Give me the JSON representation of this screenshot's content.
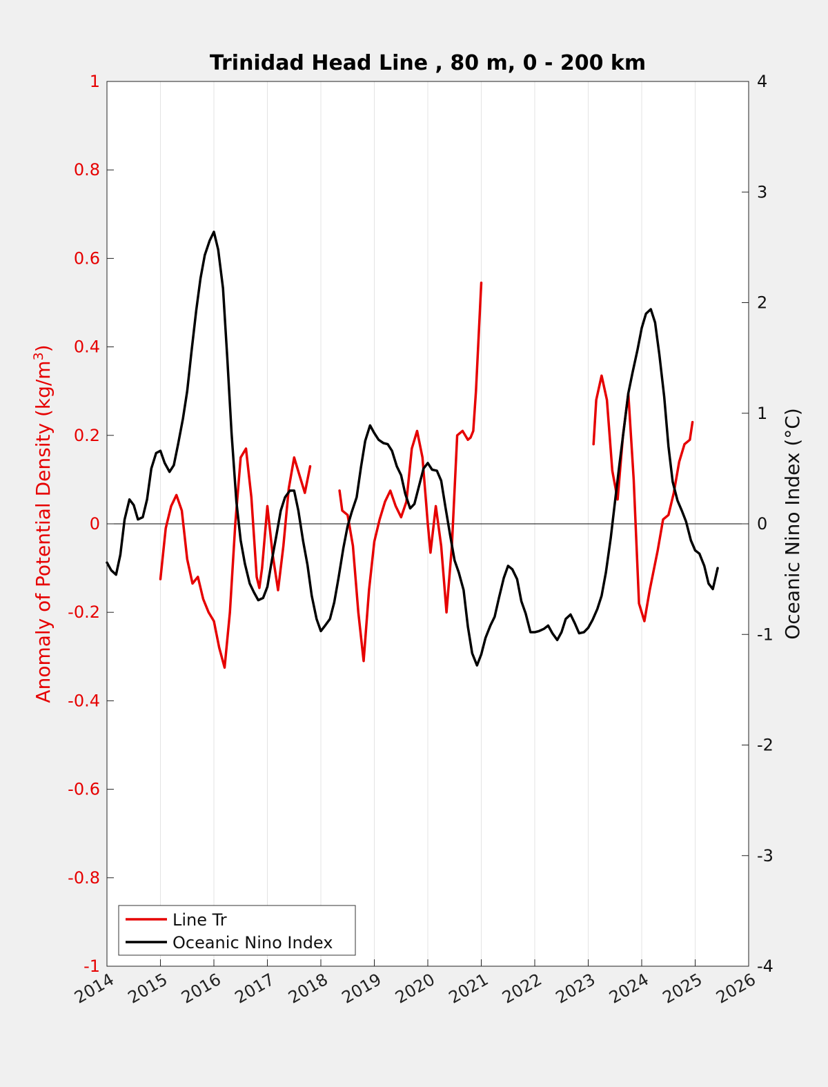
{
  "chart_data": {
    "type": "line",
    "title": "Trinidad Head Line , 80 m, 0 - 200 km",
    "ylabel_left_main": "Anomaly of Potential Density (kg/m",
    "ylabel_left_sup": "3",
    "ylabel_left_close": ")",
    "ylabel_right": "Oceanic Nino Index (°C)",
    "xlim": [
      2014,
      2026
    ],
    "ylim_left": [
      -1,
      1
    ],
    "ylim_right": [
      -4,
      4
    ],
    "x_ticks": [
      "2014",
      "2015",
      "2016",
      "2017",
      "2018",
      "2019",
      "2020",
      "2021",
      "2022",
      "2023",
      "2024",
      "2025",
      "2026"
    ],
    "y_left_ticks": [
      "1",
      "0.8",
      "0.6",
      "0.4",
      "0.2",
      "0",
      "-0.2",
      "-0.4",
      "-0.6",
      "-0.8",
      "-1"
    ],
    "y_right_ticks": [
      "4",
      "3",
      "2",
      "1",
      "0",
      "-1",
      "-2",
      "-3",
      "-4"
    ],
    "grid_x": true,
    "zero_line": true,
    "legend": {
      "position": "bottom-left",
      "entries": [
        "Line Tr",
        "Oceanic Nino Index"
      ]
    },
    "series": [
      {
        "name": "Line Tr",
        "axis": "left",
        "color": "#e60000",
        "segments": [
          [
            [
              2015.0,
              -0.125
            ],
            [
              2015.1,
              -0.01
            ],
            [
              2015.2,
              0.04
            ],
            [
              2015.3,
              0.065
            ],
            [
              2015.4,
              0.03
            ],
            [
              2015.5,
              -0.08
            ],
            [
              2015.6,
              -0.135
            ],
            [
              2015.7,
              -0.12
            ],
            [
              2015.8,
              -0.17
            ],
            [
              2015.9,
              -0.2
            ],
            [
              2016.0,
              -0.22
            ],
            [
              2016.1,
              -0.28
            ],
            [
              2016.2,
              -0.325
            ],
            [
              2016.3,
              -0.2
            ],
            [
              2016.4,
              0.0
            ],
            [
              2016.5,
              0.15
            ],
            [
              2016.6,
              0.17
            ],
            [
              2016.7,
              0.06
            ],
            [
              2016.8,
              -0.12
            ],
            [
              2016.85,
              -0.145
            ],
            [
              2016.9,
              -0.1
            ],
            [
              2017.0,
              0.04
            ],
            [
              2017.1,
              -0.07
            ],
            [
              2017.2,
              -0.15
            ],
            [
              2017.3,
              -0.05
            ],
            [
              2017.4,
              0.08
            ],
            [
              2017.5,
              0.15
            ],
            [
              2017.6,
              0.11
            ],
            [
              2017.7,
              0.07
            ],
            [
              2017.8,
              0.13
            ]
          ],
          [
            [
              2018.35,
              0.075
            ],
            [
              2018.4,
              0.03
            ],
            [
              2018.5,
              0.02
            ],
            [
              2018.6,
              -0.05
            ],
            [
              2018.7,
              -0.2
            ],
            [
              2018.8,
              -0.31
            ],
            [
              2018.9,
              -0.15
            ],
            [
              2019.0,
              -0.04
            ],
            [
              2019.1,
              0.01
            ],
            [
              2019.2,
              0.05
            ],
            [
              2019.3,
              0.075
            ],
            [
              2019.4,
              0.04
            ],
            [
              2019.5,
              0.015
            ],
            [
              2019.6,
              0.05
            ],
            [
              2019.7,
              0.17
            ],
            [
              2019.8,
              0.21
            ],
            [
              2019.9,
              0.15
            ],
            [
              2020.0,
              0.0
            ],
            [
              2020.05,
              -0.065
            ],
            [
              2020.15,
              0.04
            ],
            [
              2020.25,
              -0.05
            ],
            [
              2020.35,
              -0.2
            ],
            [
              2020.45,
              -0.05
            ],
            [
              2020.55,
              0.2
            ],
            [
              2020.65,
              0.21
            ],
            [
              2020.75,
              0.19
            ],
            [
              2020.8,
              0.195
            ],
            [
              2020.85,
              0.21
            ],
            [
              2020.9,
              0.3
            ],
            [
              2021.0,
              0.545
            ]
          ],
          [
            [
              2023.1,
              0.18
            ],
            [
              2023.15,
              0.28
            ],
            [
              2023.25,
              0.335
            ],
            [
              2023.35,
              0.28
            ],
            [
              2023.45,
              0.12
            ],
            [
              2023.55,
              0.055
            ],
            [
              2023.65,
              0.2
            ],
            [
              2023.75,
              0.295
            ],
            [
              2023.85,
              0.1
            ],
            [
              2023.95,
              -0.18
            ],
            [
              2024.05,
              -0.22
            ],
            [
              2024.15,
              -0.15
            ],
            [
              2024.3,
              -0.06
            ],
            [
              2024.4,
              0.01
            ],
            [
              2024.5,
              0.02
            ],
            [
              2024.6,
              0.07
            ],
            [
              2024.7,
              0.14
            ],
            [
              2024.8,
              0.18
            ],
            [
              2024.9,
              0.19
            ],
            [
              2024.95,
              0.23
            ]
          ]
        ]
      },
      {
        "name": "Oceanic Nino Index",
        "axis": "right",
        "color": "#000000",
        "segments": [
          [
            [
              2014.0,
              -0.35
            ],
            [
              2014.08,
              -0.42
            ],
            [
              2014.17,
              -0.46
            ],
            [
              2014.25,
              -0.28
            ],
            [
              2014.33,
              0.04
            ],
            [
              2014.42,
              0.22
            ],
            [
              2014.5,
              0.17
            ],
            [
              2014.58,
              0.04
            ],
            [
              2014.67,
              0.06
            ],
            [
              2014.75,
              0.22
            ],
            [
              2014.83,
              0.5
            ],
            [
              2014.92,
              0.64
            ],
            [
              2015.0,
              0.66
            ],
            [
              2015.08,
              0.55
            ],
            [
              2015.17,
              0.47
            ],
            [
              2015.25,
              0.53
            ],
            [
              2015.33,
              0.72
            ],
            [
              2015.42,
              0.95
            ],
            [
              2015.5,
              1.2
            ],
            [
              2015.58,
              1.55
            ],
            [
              2015.67,
              1.93
            ],
            [
              2015.75,
              2.22
            ],
            [
              2015.83,
              2.43
            ],
            [
              2015.92,
              2.56
            ],
            [
              2016.0,
              2.64
            ],
            [
              2016.08,
              2.48
            ],
            [
              2016.17,
              2.13
            ],
            [
              2016.25,
              1.5
            ],
            [
              2016.33,
              0.82
            ],
            [
              2016.42,
              0.2
            ],
            [
              2016.5,
              -0.15
            ],
            [
              2016.58,
              -0.36
            ],
            [
              2016.67,
              -0.54
            ],
            [
              2016.75,
              -0.62
            ],
            [
              2016.83,
              -0.69
            ],
            [
              2016.92,
              -0.67
            ],
            [
              2017.0,
              -0.57
            ],
            [
              2017.08,
              -0.34
            ],
            [
              2017.17,
              -0.1
            ],
            [
              2017.25,
              0.12
            ],
            [
              2017.33,
              0.24
            ],
            [
              2017.42,
              0.3
            ],
            [
              2017.5,
              0.3
            ],
            [
              2017.58,
              0.12
            ],
            [
              2017.67,
              -0.16
            ],
            [
              2017.75,
              -0.37
            ],
            [
              2017.83,
              -0.65
            ],
            [
              2017.92,
              -0.86
            ],
            [
              2018.0,
              -0.97
            ],
            [
              2018.08,
              -0.92
            ],
            [
              2018.17,
              -0.86
            ],
            [
              2018.25,
              -0.71
            ],
            [
              2018.33,
              -0.49
            ],
            [
              2018.42,
              -0.22
            ],
            [
              2018.5,
              -0.02
            ],
            [
              2018.58,
              0.11
            ],
            [
              2018.67,
              0.24
            ],
            [
              2018.75,
              0.51
            ],
            [
              2018.83,
              0.75
            ],
            [
              2018.92,
              0.89
            ],
            [
              2019.0,
              0.82
            ],
            [
              2019.08,
              0.76
            ],
            [
              2019.17,
              0.73
            ],
            [
              2019.25,
              0.72
            ],
            [
              2019.33,
              0.66
            ],
            [
              2019.42,
              0.52
            ],
            [
              2019.5,
              0.44
            ],
            [
              2019.58,
              0.27
            ],
            [
              2019.67,
              0.14
            ],
            [
              2019.75,
              0.18
            ],
            [
              2019.83,
              0.33
            ],
            [
              2019.92,
              0.5
            ],
            [
              2020.0,
              0.55
            ],
            [
              2020.08,
              0.49
            ],
            [
              2020.17,
              0.48
            ],
            [
              2020.25,
              0.39
            ],
            [
              2020.33,
              0.15
            ],
            [
              2020.42,
              -0.11
            ],
            [
              2020.5,
              -0.33
            ],
            [
              2020.58,
              -0.44
            ],
            [
              2020.67,
              -0.6
            ],
            [
              2020.75,
              -0.93
            ],
            [
              2020.83,
              -1.17
            ],
            [
              2020.92,
              -1.28
            ],
            [
              2021.0,
              -1.18
            ],
            [
              2021.08,
              -1.03
            ],
            [
              2021.17,
              -0.92
            ],
            [
              2021.25,
              -0.84
            ],
            [
              2021.33,
              -0.67
            ],
            [
              2021.42,
              -0.49
            ],
            [
              2021.5,
              -0.38
            ],
            [
              2021.58,
              -0.41
            ],
            [
              2021.67,
              -0.5
            ],
            [
              2021.75,
              -0.7
            ],
            [
              2021.83,
              -0.81
            ],
            [
              2021.92,
              -0.98
            ],
            [
              2022.0,
              -0.98
            ],
            [
              2022.08,
              -0.97
            ],
            [
              2022.17,
              -0.95
            ],
            [
              2022.25,
              -0.92
            ],
            [
              2022.33,
              -0.99
            ],
            [
              2022.42,
              -1.05
            ],
            [
              2022.5,
              -0.98
            ],
            [
              2022.58,
              -0.86
            ],
            [
              2022.67,
              -0.82
            ],
            [
              2022.75,
              -0.9
            ],
            [
              2022.83,
              -0.99
            ],
            [
              2022.92,
              -0.98
            ],
            [
              2023.0,
              -0.94
            ],
            [
              2023.08,
              -0.87
            ],
            [
              2023.17,
              -0.77
            ],
            [
              2023.25,
              -0.65
            ],
            [
              2023.33,
              -0.44
            ],
            [
              2023.42,
              -0.13
            ],
            [
              2023.5,
              0.2
            ],
            [
              2023.58,
              0.52
            ],
            [
              2023.67,
              0.87
            ],
            [
              2023.75,
              1.18
            ],
            [
              2023.83,
              1.37
            ],
            [
              2023.92,
              1.57
            ],
            [
              2024.0,
              1.77
            ],
            [
              2024.08,
              1.9
            ],
            [
              2024.17,
              1.94
            ],
            [
              2024.25,
              1.82
            ],
            [
              2024.33,
              1.53
            ],
            [
              2024.42,
              1.15
            ],
            [
              2024.5,
              0.7
            ],
            [
              2024.58,
              0.38
            ],
            [
              2024.67,
              0.21
            ],
            [
              2024.75,
              0.12
            ],
            [
              2024.83,
              0.02
            ],
            [
              2024.92,
              -0.15
            ],
            [
              2025.0,
              -0.24
            ],
            [
              2025.08,
              -0.27
            ],
            [
              2025.17,
              -0.38
            ],
            [
              2025.25,
              -0.54
            ],
            [
              2025.33,
              -0.59
            ],
            [
              2025.42,
              -0.4
            ]
          ]
        ]
      }
    ]
  }
}
